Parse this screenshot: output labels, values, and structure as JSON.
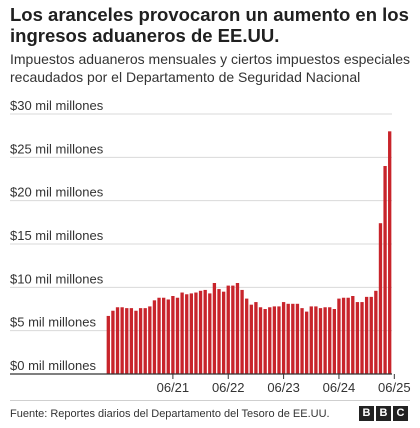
{
  "title": "Los aranceles provocaron un aumento en los ingresos aduaneros de EE.UU.",
  "subtitle": "Impuestos aduaneros mensuales y ciertos impuestos especiales recaudados por el Departamento de Seguridad Nacional",
  "source": "Fuente: Reportes diarios del Departamento del Tesoro de EE.UU.",
  "logo": [
    "B",
    "B",
    "C"
  ],
  "colors": {
    "bar": "#c8242b",
    "grid": "#d9d9d9",
    "axis": "#333333"
  },
  "chart_data": {
    "type": "bar",
    "ylim": [
      0,
      30
    ],
    "yticks": [
      0,
      5,
      10,
      15,
      20,
      25,
      30
    ],
    "ytick_labels": [
      "$0 mil millones",
      "$5 mil millones",
      "$10 mil millones",
      "$15 mil millones",
      "$20 mil millones",
      "$25 mil millones",
      "$30 mil millones"
    ],
    "xtick_labels": [
      {
        "label": "06/21",
        "index": 14
      },
      {
        "label": "06/22",
        "index": 26
      },
      {
        "label": "06/23",
        "index": 38
      },
      {
        "label": "06/24",
        "index": 50
      },
      {
        "label": "06/25",
        "index": 62
      }
    ],
    "grid": true,
    "values": [
      6.7,
      7.3,
      7.7,
      7.7,
      7.6,
      7.6,
      7.3,
      7.6,
      7.6,
      7.8,
      8.5,
      8.8,
      8.8,
      8.6,
      9.0,
      8.8,
      9.4,
      9.2,
      9.3,
      9.4,
      9.6,
      9.7,
      9.3,
      10.5,
      9.8,
      9.5,
      10.2,
      10.2,
      10.5,
      9.7,
      8.7,
      8.0,
      8.3,
      7.7,
      7.5,
      7.7,
      7.8,
      7.8,
      8.3,
      8.1,
      8.1,
      8.1,
      7.6,
      7.2,
      7.8,
      7.8,
      7.6,
      7.7,
      7.7,
      7.5,
      8.7,
      8.8,
      8.8,
      9.0,
      8.3,
      8.3,
      8.9,
      8.9,
      9.6,
      17.4,
      24.0,
      28.0
    ]
  }
}
